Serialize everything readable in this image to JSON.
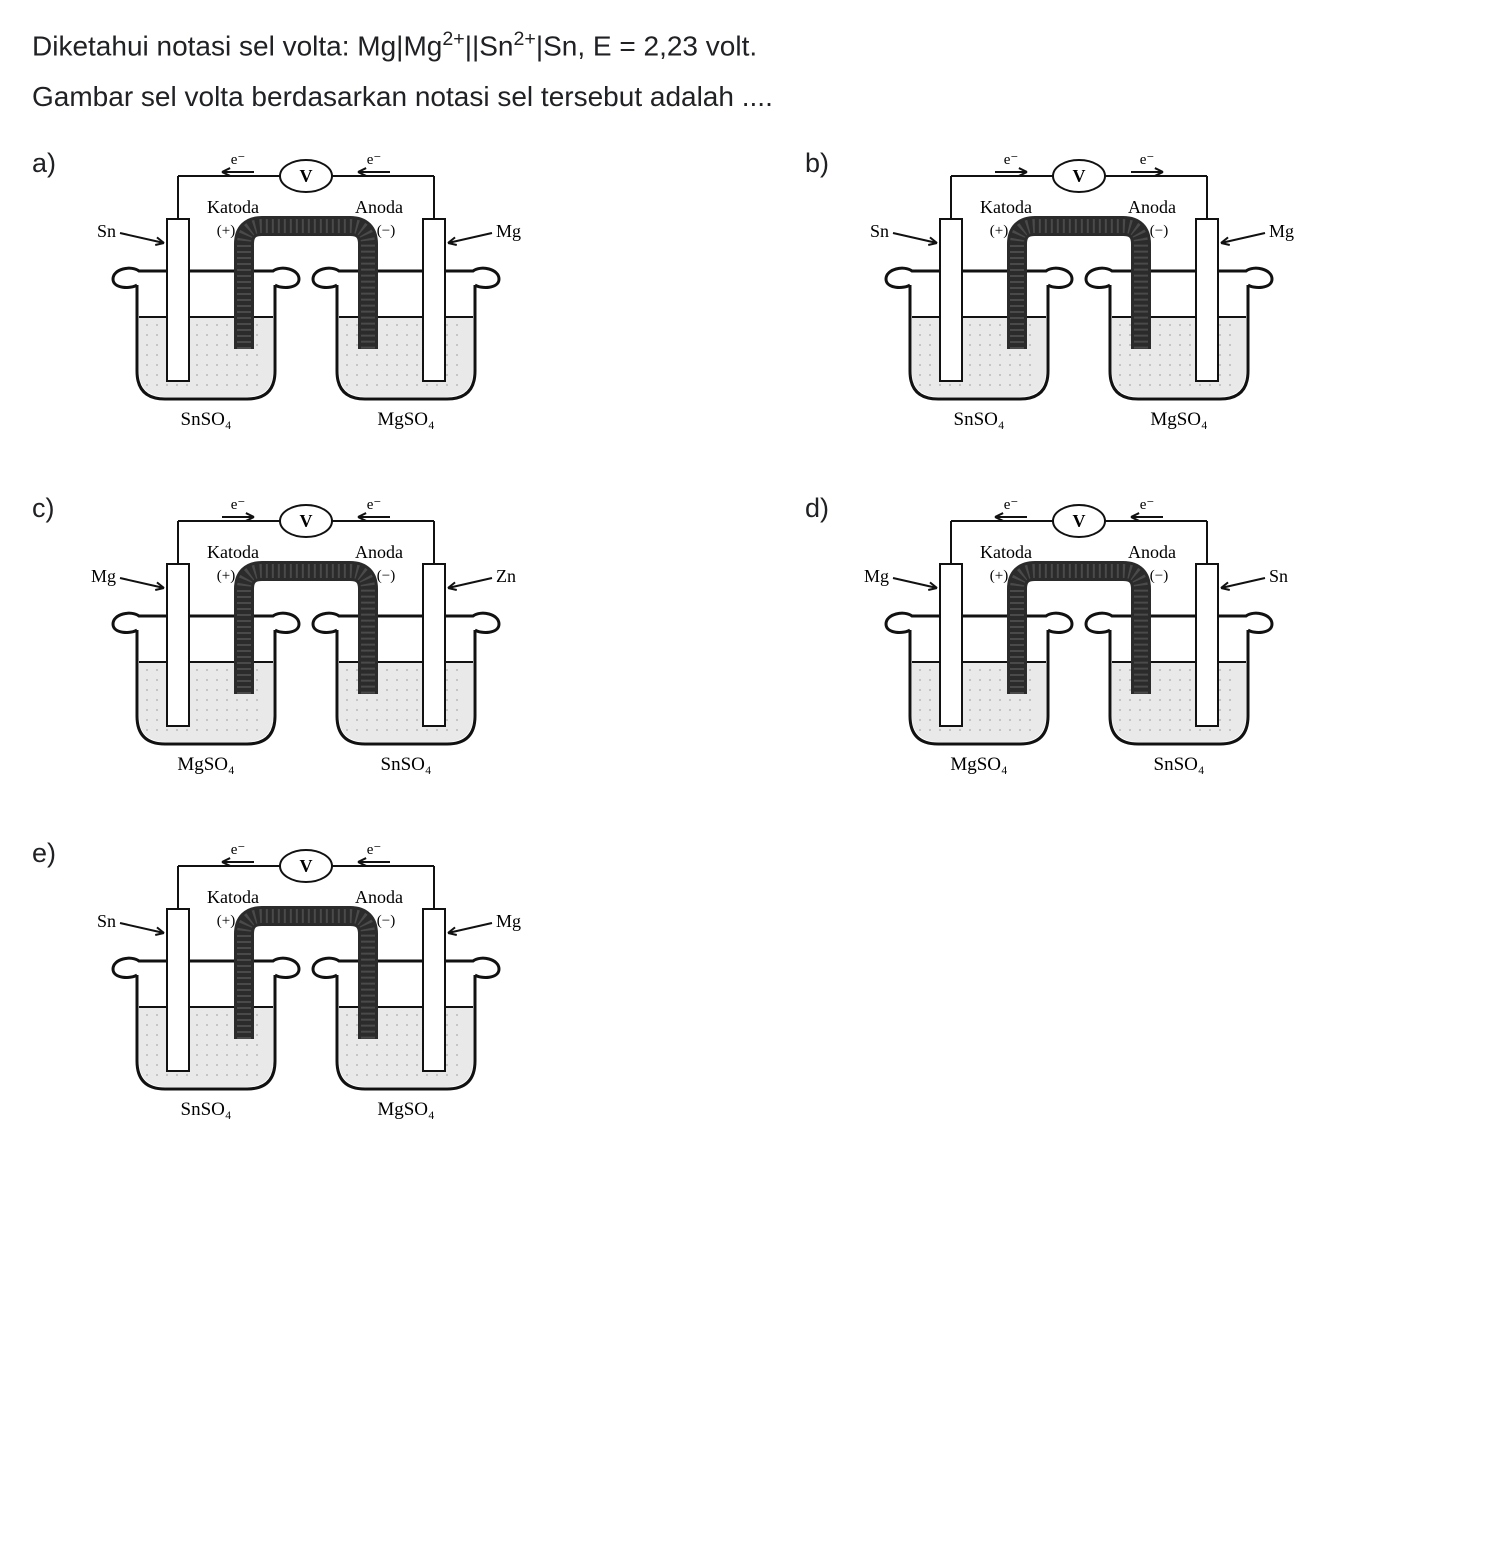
{
  "question": {
    "line1_prefix": "Diketahui notasi sel volta: Mg|Mg",
    "line1_sup1": "2+",
    "line1_mid": "||Sn",
    "line1_sup2": "2+",
    "line1_suffix": "|Sn, E = 2,23 volt.",
    "line2": "Gambar sel volta berdasarkan notasi sel tersebut adalah ...."
  },
  "labels": {
    "katoda": "Katoda",
    "anoda": "Anoda",
    "plus": "(+)",
    "minus": "(−)",
    "volt": "V",
    "electron": "e⁻"
  },
  "solutions": {
    "SnSO4": "SnSO₄",
    "MgSO4": "MgSO₄"
  },
  "electrodes": {
    "Sn": "Sn",
    "Mg": "Mg",
    "Zn": "Zn"
  },
  "options": [
    {
      "letter": "a)",
      "left_arrow": "left",
      "right_arrow": "left",
      "left_electrode": "Sn",
      "right_electrode": "Mg",
      "left_solution": "SnSO4",
      "right_solution": "MgSO4"
    },
    {
      "letter": "b)",
      "left_arrow": "right",
      "right_arrow": "right",
      "left_electrode": "Sn",
      "right_electrode": "Mg",
      "left_solution": "SnSO4",
      "right_solution": "MgSO4"
    },
    {
      "letter": "c)",
      "left_arrow": "right",
      "right_arrow": "left",
      "left_electrode": "Mg",
      "right_electrode": "Zn",
      "left_solution": "MgSO4",
      "right_solution": "SnSO4"
    },
    {
      "letter": "d)",
      "left_arrow": "left",
      "right_arrow": "left",
      "left_electrode": "Mg",
      "right_electrode": "Sn",
      "left_solution": "MgSO4",
      "right_solution": "SnSO4"
    },
    {
      "letter": "e)",
      "left_arrow": "left",
      "right_arrow": "left",
      "left_electrode": "Sn",
      "right_electrode": "Mg",
      "left_solution": "SnSO4",
      "right_solution": "MgSO4"
    }
  ],
  "style": {
    "background": "#ffffff",
    "text_color": "#202124",
    "stroke": "#111111",
    "stroke_bold": 3,
    "stroke_thin": 2,
    "bridge_fill": "#2b2b2b",
    "solution_fill": "#e9e9e9",
    "electrode_fill": "#ffffff",
    "font_question": 28,
    "font_option_letter": 27,
    "font_diagram_label": 18,
    "font_diagram_small": 15,
    "font_solution": 19
  }
}
